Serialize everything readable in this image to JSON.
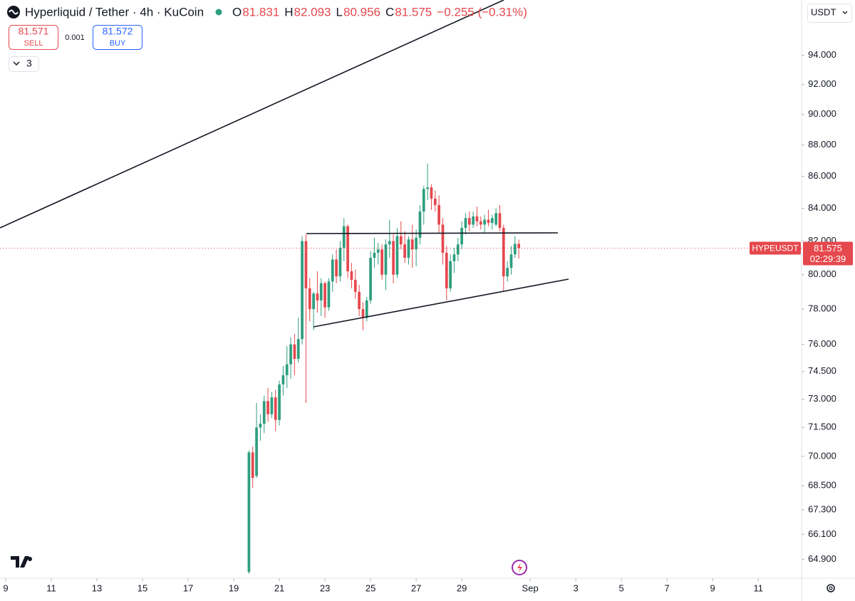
{
  "header": {
    "title": "Hyperliquid / Tether · 4h · KuCoin",
    "ohlc": [
      {
        "key": "O",
        "value": "81.831"
      },
      {
        "key": "H",
        "value": "82.093"
      },
      {
        "key": "L",
        "value": "80.956"
      },
      {
        "key": "C",
        "value": "81.575"
      }
    ],
    "change": "−0.255 (−0.31%)",
    "sell": {
      "price": "81.571",
      "label": "SELL"
    },
    "spread": "0.001",
    "buy": {
      "price": "81.572",
      "label": "BUY"
    },
    "indicators": "3",
    "currency": "USDT"
  },
  "chart_data": {
    "type": "candlestick",
    "log_scale": true,
    "up_color": "#2e9e7e",
    "down_color": "#e5484d",
    "x": [
      19.667,
      19.833,
      20,
      20.167,
      20.333,
      20.5,
      20.667,
      20.833,
      21,
      21.167,
      21.333,
      21.5,
      21.667,
      21.833,
      22,
      22.167,
      22.333,
      22.5,
      22.667,
      22.833,
      23,
      23.167,
      23.333,
      23.5,
      23.667,
      23.833,
      24,
      24.167,
      24.333,
      24.5,
      24.667,
      24.833,
      25,
      25.167,
      25.333,
      25.5,
      25.667,
      25.833,
      26,
      26.167,
      26.333,
      26.5,
      26.667,
      26.833,
      27,
      27.167,
      27.333,
      27.5,
      27.667,
      27.833,
      28,
      28.167,
      28.333,
      28.5,
      28.667,
      28.833,
      29,
      29.167,
      29.333,
      29.5,
      29.667,
      29.833,
      30,
      30.167,
      30.333,
      30.5,
      30.667,
      30.833,
      31,
      31.167,
      31.333,
      31.5
    ],
    "open": [
      64.3,
      70.2,
      69.0,
      71.5,
      71.7,
      72.9,
      72.2,
      73.1,
      71.9,
      73.8,
      74.3,
      74.9,
      76.0,
      75.2,
      76.3,
      82.0,
      79.2,
      78.0,
      78.9,
      78.5,
      79.5,
      78.1,
      79.6,
      80.9,
      79.9,
      81.6,
      82.9,
      80.2,
      79.7,
      79.0,
      78.0,
      77.5,
      78.5,
      81.0,
      81.3,
      81.5,
      80.0,
      81.8,
      82.0,
      80.0,
      82.3,
      81.8,
      81.0,
      82.1,
      81.5,
      82.2,
      83.8,
      85.2,
      85.3,
      84.6,
      84.2,
      83.0,
      81.3,
      79.2,
      80.8,
      81.2,
      81.8,
      82.8,
      83.4,
      83.0,
      83.5,
      83.2,
      83.0,
      83.3,
      83.1,
      83.0,
      83.7,
      82.8,
      79.9,
      80.4,
      81.2,
      81.831
    ],
    "high": [
      70.3,
      70.5,
      72.8,
      72.2,
      73.2,
      73.6,
      73.4,
      73.5,
      74.0,
      74.8,
      75.9,
      76.4,
      76.6,
      77.5,
      82.3,
      82.4,
      79.8,
      79.0,
      80.2,
      79.8,
      79.6,
      79.8,
      81.2,
      81.5,
      82.0,
      83.4,
      83.0,
      80.7,
      80.3,
      79.4,
      78.4,
      78.7,
      81.4,
      82.2,
      81.9,
      81.8,
      82.1,
      83.3,
      82.4,
      82.8,
      83.2,
      82.6,
      82.3,
      83.0,
      82.7,
      84.2,
      85.4,
      86.8,
      85.5,
      85.1,
      84.8,
      83.4,
      81.7,
      81.2,
      81.6,
      82.2,
      83.2,
      83.7,
      83.8,
      83.8,
      84.1,
      83.5,
      83.6,
      83.9,
      83.6,
      84.0,
      84.2,
      83.0,
      80.8,
      81.7,
      82.3,
      82.093
    ],
    "low": [
      64.2,
      68.4,
      68.9,
      70.8,
      71.2,
      71.8,
      72.0,
      71.3,
      71.6,
      73.2,
      73.6,
      74.1,
      74.3,
      75.0,
      76.0,
      72.8,
      77.3,
      76.8,
      77.8,
      77.6,
      77.5,
      77.9,
      79.0,
      79.5,
      79.6,
      80.8,
      79.8,
      79.2,
      78.6,
      77.6,
      76.8,
      77.3,
      78.3,
      80.4,
      80.6,
      79.7,
      79.1,
      81.0,
      79.5,
      79.8,
      81.5,
      80.7,
      80.6,
      80.4,
      80.5,
      81.8,
      83.0,
      84.5,
      83.9,
      83.8,
      82.5,
      80.6,
      78.5,
      79.0,
      80.1,
      80.8,
      81.5,
      82.4,
      82.6,
      82.8,
      82.9,
      82.7,
      82.5,
      82.9,
      82.7,
      82.9,
      82.6,
      79.0,
      79.6,
      80.0,
      81.0,
      80.956
    ],
    "close": [
      70.2,
      68.9,
      71.5,
      71.7,
      72.9,
      72.2,
      73.1,
      71.9,
      73.8,
      74.3,
      74.9,
      76.0,
      75.2,
      76.3,
      82.0,
      79.2,
      78.0,
      78.9,
      78.5,
      79.5,
      78.1,
      79.6,
      80.9,
      79.9,
      81.6,
      82.9,
      80.2,
      79.7,
      79.0,
      78.0,
      77.5,
      78.5,
      81.0,
      81.3,
      81.5,
      80.0,
      81.8,
      82.0,
      80.0,
      82.3,
      81.8,
      81.0,
      82.1,
      81.5,
      82.2,
      83.8,
      85.2,
      85.3,
      84.6,
      84.2,
      83.0,
      81.3,
      79.2,
      80.8,
      81.2,
      81.8,
      82.8,
      83.4,
      83.0,
      83.5,
      83.2,
      83.0,
      83.3,
      83.1,
      83.4,
      83.7,
      82.8,
      79.9,
      80.4,
      81.2,
      81.831,
      81.575
    ],
    "xlim": [
      8.75,
      43.9
    ],
    "xticks": [
      9,
      11,
      13,
      15,
      17,
      19,
      21,
      23,
      25,
      27,
      29,
      {
        "value": 32,
        "label": "Sep"
      },
      {
        "value": 34,
        "label": "3"
      },
      {
        "value": 36,
        "label": "5"
      },
      {
        "value": 38,
        "label": "7"
      },
      {
        "value": 40,
        "label": "9"
      },
      {
        "value": 42,
        "label": "11"
      }
    ],
    "ylim": [
      64.0,
      97.9
    ],
    "yticks": [
      {
        "value": 94,
        "label": "94.000"
      },
      {
        "value": 92,
        "label": "92.000"
      },
      {
        "value": 90,
        "label": "90.000"
      },
      {
        "value": 88,
        "label": "88.000"
      },
      {
        "value": 86,
        "label": "86.000"
      },
      {
        "value": 84,
        "label": "84.000"
      },
      {
        "value": 82,
        "label": "82.000"
      },
      {
        "value": 80,
        "label": "80.000"
      },
      {
        "value": 78,
        "label": "78.000"
      },
      {
        "value": 76,
        "label": "76.000"
      },
      {
        "value": 74.5,
        "label": "74.500"
      },
      {
        "value": 73,
        "label": "73.000"
      },
      {
        "value": 71.5,
        "label": "71.500"
      },
      {
        "value": 70,
        "label": "70.000"
      },
      {
        "value": 68.5,
        "label": "68.500"
      },
      {
        "value": 67.3,
        "label": "67.300"
      },
      {
        "value": 66.1,
        "label": "66.100"
      },
      {
        "value": 64.9,
        "label": "64.900"
      }
    ],
    "last_price": {
      "name": "HYPEUSDT",
      "value": 81.575,
      "countdown": "02:29:39",
      "color": "#e5484d"
    }
  }
}
